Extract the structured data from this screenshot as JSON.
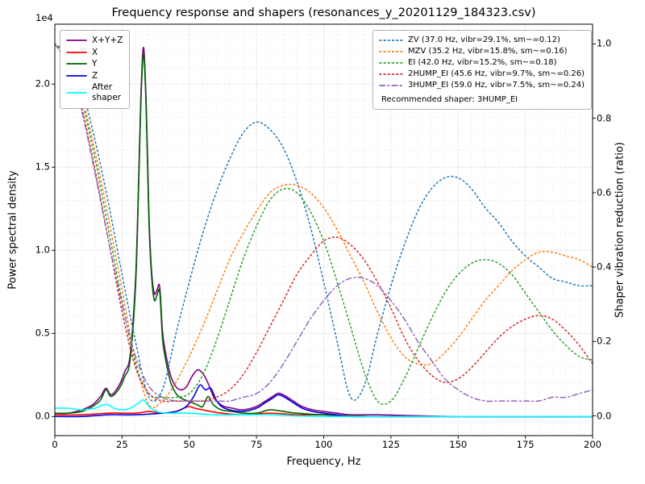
{
  "chart_data": {
    "type": "line",
    "title": "Frequency response and shapers (resonances_y_20201129_184323.csv)",
    "xlabel": "Frequency, Hz",
    "ylabel_left": "Power spectral density",
    "ylabel_right": "Shaper vibration reduction (ratio)",
    "offset_text": "1e4",
    "psd_units": "1e4",
    "xlim": [
      0,
      200
    ],
    "ylim_left": [
      -0.115,
      2.36
    ],
    "ylim_right": [
      -0.053,
      1.053
    ],
    "xticks": [
      0,
      25,
      50,
      75,
      100,
      125,
      150,
      175,
      200
    ],
    "yticks_left": {
      "values": [
        0,
        0.5,
        1.0,
        1.5,
        2.0
      ],
      "labels": [
        "0.0",
        "0.5",
        "1.0",
        "1.5",
        "2.0"
      ]
    },
    "yticks_right": {
      "values": [
        0,
        0.2,
        0.4,
        0.6,
        0.8,
        1.0
      ],
      "labels": [
        "0.0",
        "0.2",
        "0.4",
        "0.6",
        "0.8",
        "1.0"
      ]
    },
    "grid": {
      "major_color": "#bdbdbd",
      "minor_color": "#e2e2e2",
      "x_minor_step": 5,
      "y_minor_step_left": 0.1
    },
    "legend_note": "Recommended shaper: 3HUMP_EI",
    "psd_series": [
      {
        "name": "X+Y+Z",
        "label": "X+Y+Z",
        "color": "#800080",
        "style": "solid",
        "x": [
          0,
          5,
          10,
          14,
          17,
          19,
          21,
          24,
          26,
          28,
          30,
          31,
          32,
          33,
          34,
          35,
          36,
          37,
          38,
          39,
          40,
          41,
          43,
          45,
          47,
          49,
          51,
          53,
          55,
          57,
          59,
          61,
          63,
          66,
          70,
          75,
          78,
          81,
          83,
          85,
          88,
          92,
          96,
          100,
          105,
          110,
          120,
          150,
          200
        ],
        "y": [
          0.02,
          0.02,
          0.04,
          0.07,
          0.12,
          0.17,
          0.13,
          0.19,
          0.27,
          0.37,
          0.82,
          1.32,
          1.92,
          2.22,
          1.87,
          1.22,
          0.87,
          0.74,
          0.76,
          0.78,
          0.52,
          0.4,
          0.25,
          0.18,
          0.16,
          0.18,
          0.24,
          0.28,
          0.26,
          0.2,
          0.12,
          0.08,
          0.06,
          0.05,
          0.04,
          0.06,
          0.09,
          0.12,
          0.14,
          0.13,
          0.1,
          0.06,
          0.04,
          0.03,
          0.02,
          0.01,
          0.01,
          0.0,
          0.0
        ]
      },
      {
        "name": "X",
        "label": "X",
        "color": "#ff0000",
        "style": "solid",
        "x": [
          0,
          10,
          20,
          30,
          35,
          40,
          45,
          48,
          50,
          52,
          55,
          58,
          62,
          70,
          80,
          90,
          100,
          120,
          150,
          200
        ],
        "y": [
          0.01,
          0.01,
          0.02,
          0.02,
          0.03,
          0.02,
          0.03,
          0.05,
          0.06,
          0.05,
          0.04,
          0.03,
          0.02,
          0.01,
          0.02,
          0.01,
          0.01,
          0.0,
          0.0,
          0.0
        ]
      },
      {
        "name": "Y",
        "label": "Y",
        "color": "#006400",
        "style": "solid",
        "x": [
          0,
          5,
          10,
          14,
          17,
          19,
          21,
          24,
          26,
          28,
          30,
          31,
          32,
          33,
          34,
          35,
          36,
          37,
          38,
          39,
          40,
          41,
          43,
          45,
          47,
          50,
          53,
          55,
          57,
          59,
          62,
          66,
          70,
          75,
          80,
          85,
          90,
          100,
          120,
          150,
          200
        ],
        "y": [
          0.02,
          0.02,
          0.03,
          0.06,
          0.1,
          0.16,
          0.12,
          0.17,
          0.24,
          0.34,
          0.78,
          1.28,
          1.88,
          2.18,
          1.83,
          1.18,
          0.84,
          0.7,
          0.73,
          0.75,
          0.48,
          0.36,
          0.21,
          0.14,
          0.11,
          0.09,
          0.07,
          0.06,
          0.12,
          0.07,
          0.04,
          0.03,
          0.02,
          0.02,
          0.04,
          0.03,
          0.02,
          0.01,
          0.0,
          0.0,
          0.0
        ]
      },
      {
        "name": "Z",
        "label": "Z",
        "color": "#0000e0",
        "style": "solid",
        "x": [
          0,
          10,
          20,
          30,
          40,
          45,
          48,
          50,
          52,
          54,
          56,
          58,
          60,
          62,
          65,
          70,
          75,
          78,
          81,
          83,
          85,
          88,
          92,
          96,
          100,
          105,
          110,
          120,
          150,
          200
        ],
        "y": [
          0.0,
          0.0,
          0.01,
          0.01,
          0.02,
          0.03,
          0.05,
          0.08,
          0.13,
          0.19,
          0.16,
          0.17,
          0.1,
          0.06,
          0.04,
          0.03,
          0.05,
          0.08,
          0.11,
          0.13,
          0.12,
          0.09,
          0.05,
          0.03,
          0.02,
          0.01,
          0.0,
          0.0,
          0.0,
          0.0
        ]
      },
      {
        "name": "After shaper",
        "label": "After\nshaper",
        "color": "#00ffff",
        "style": "solid",
        "x": [
          0,
          5,
          10,
          15,
          18,
          20,
          22,
          25,
          28,
          31,
          33,
          35,
          38,
          42,
          50,
          60,
          80,
          100,
          150,
          200
        ],
        "y": [
          0.05,
          0.05,
          0.04,
          0.05,
          0.07,
          0.07,
          0.05,
          0.04,
          0.05,
          0.08,
          0.1,
          0.06,
          0.03,
          0.02,
          0.02,
          0.01,
          0.01,
          0.0,
          0.0,
          0.0
        ]
      }
    ],
    "shaper_x": [
      0,
      5,
      10,
      15,
      20,
      25,
      30,
      35,
      40,
      45,
      50,
      55,
      60,
      65,
      70,
      75,
      80,
      85,
      90,
      95,
      100,
      105,
      110,
      115,
      120,
      125,
      130,
      135,
      140,
      145,
      150,
      155,
      160,
      165,
      170,
      175,
      180,
      185,
      190,
      195,
      200
    ],
    "shaper_series": [
      {
        "name": "ZV",
        "label": "ZV (37.0 Hz, vibr=29.1%, sm~=0.12)",
        "freq_hz": 37.0,
        "vibr_pct": 29.1,
        "smoothing": 0.12,
        "color": "#1f77b4",
        "style": "dotted",
        "y": [
          1.0,
          0.97,
          0.88,
          0.74,
          0.57,
          0.38,
          0.2,
          0.05,
          0.07,
          0.22,
          0.36,
          0.49,
          0.6,
          0.69,
          0.76,
          0.79,
          0.77,
          0.72,
          0.63,
          0.51,
          0.36,
          0.2,
          0.05,
          0.08,
          0.22,
          0.35,
          0.46,
          0.55,
          0.61,
          0.64,
          0.64,
          0.61,
          0.56,
          0.52,
          0.47,
          0.43,
          0.4,
          0.37,
          0.36,
          0.35,
          0.35
        ]
      },
      {
        "name": "MZV",
        "label": "MZV (35.2 Hz, vibr=15.8%, sm~=0.16)",
        "freq_hz": 35.2,
        "vibr_pct": 15.8,
        "smoothing": 0.16,
        "color": "#ff7f0e",
        "style": "dotted",
        "y": [
          1.0,
          0.96,
          0.86,
          0.71,
          0.53,
          0.34,
          0.15,
          0.03,
          0.04,
          0.09,
          0.16,
          0.24,
          0.33,
          0.42,
          0.49,
          0.55,
          0.6,
          0.62,
          0.62,
          0.6,
          0.56,
          0.5,
          0.43,
          0.36,
          0.28,
          0.21,
          0.16,
          0.14,
          0.14,
          0.17,
          0.21,
          0.26,
          0.31,
          0.35,
          0.39,
          0.42,
          0.44,
          0.44,
          0.43,
          0.42,
          0.4
        ]
      },
      {
        "name": "EI",
        "label": "EI (42.0 Hz, vibr=15.2%, sm~=0.18)",
        "freq_hz": 42.0,
        "vibr_pct": 15.2,
        "smoothing": 0.18,
        "color": "#2ca02c",
        "style": "dotted",
        "y": [
          1.0,
          0.96,
          0.85,
          0.69,
          0.5,
          0.31,
          0.14,
          0.06,
          0.05,
          0.05,
          0.06,
          0.11,
          0.2,
          0.31,
          0.42,
          0.51,
          0.58,
          0.61,
          0.6,
          0.55,
          0.47,
          0.36,
          0.24,
          0.12,
          0.04,
          0.04,
          0.1,
          0.18,
          0.26,
          0.33,
          0.38,
          0.41,
          0.42,
          0.41,
          0.38,
          0.33,
          0.28,
          0.23,
          0.19,
          0.16,
          0.15
        ]
      },
      {
        "name": "2HUMP_EI",
        "label": "2HUMP_EI (45.6 Hz, vibr=9.7%, sm~=0.26)",
        "freq_hz": 45.6,
        "vibr_pct": 9.7,
        "smoothing": 0.26,
        "color": "#d62728",
        "style": "dotted",
        "y": [
          1.0,
          0.95,
          0.83,
          0.66,
          0.47,
          0.28,
          0.13,
          0.06,
          0.04,
          0.04,
          0.04,
          0.04,
          0.05,
          0.07,
          0.11,
          0.17,
          0.24,
          0.31,
          0.38,
          0.43,
          0.47,
          0.48,
          0.46,
          0.42,
          0.36,
          0.29,
          0.21,
          0.15,
          0.11,
          0.09,
          0.1,
          0.13,
          0.17,
          0.21,
          0.24,
          0.26,
          0.27,
          0.26,
          0.23,
          0.19,
          0.14
        ]
      },
      {
        "name": "3HUMP_EI",
        "label": "3HUMP_EI (59.0 Hz, vibr=7.5%, sm~=0.24)",
        "freq_hz": 59.0,
        "vibr_pct": 7.5,
        "smoothing": 0.24,
        "color": "#9467bd",
        "style": "dashdot",
        "y": [
          1.0,
          0.94,
          0.82,
          0.65,
          0.47,
          0.3,
          0.16,
          0.08,
          0.05,
          0.04,
          0.04,
          0.04,
          0.04,
          0.04,
          0.05,
          0.06,
          0.09,
          0.14,
          0.2,
          0.26,
          0.31,
          0.35,
          0.37,
          0.37,
          0.35,
          0.31,
          0.26,
          0.2,
          0.15,
          0.1,
          0.07,
          0.05,
          0.04,
          0.04,
          0.04,
          0.04,
          0.04,
          0.05,
          0.05,
          0.06,
          0.07
        ]
      }
    ]
  }
}
